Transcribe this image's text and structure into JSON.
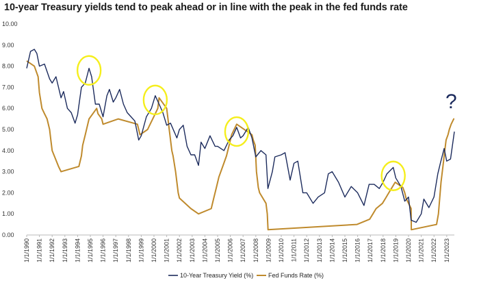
{
  "chart_data": {
    "type": "line",
    "title": "10-year Treasury yields tend to peak ahead or in line with the peak in the fed funds rate",
    "xlabel": "",
    "ylabel": "",
    "x_range": [
      1990.0,
      2023.6
    ],
    "ylim": [
      0,
      10
    ],
    "y_ticks": [
      "0.00",
      "1.00",
      "2.00",
      "3.00",
      "4.00",
      "5.00",
      "6.00",
      "7.00",
      "8.00",
      "9.00",
      "10.00"
    ],
    "x_ticks": [
      "1/1/1990",
      "1/1/1991",
      "1/1/1992",
      "1/1/1993",
      "1/1/1994",
      "1/1/1995",
      "1/1/1996",
      "1/1/1997",
      "1/1/1998",
      "1/1/1999",
      "1/1/2000",
      "1/1/2001",
      "1/1/2002",
      "1/1/2003",
      "1/1/2004",
      "1/1/2005",
      "1/1/2006",
      "1/1/2007",
      "1/1/2008",
      "1/1/2009",
      "1/1/2010",
      "1/1/2011",
      "1/1/2012",
      "1/1/2013",
      "1/1/2014",
      "1/1/2015",
      "1/1/2016",
      "1/1/2017",
      "1/1/2018",
      "1/1/2019",
      "1/1/2020",
      "1/1/2021",
      "1/1/2022",
      "1/1/2023"
    ],
    "grid": false,
    "legend_position": "bottom-center",
    "series": [
      {
        "name": "10-Year Treasury Yield (%)",
        "color": "#1b2a5c",
        "points": [
          [
            1990.0,
            7.9
          ],
          [
            1990.3,
            8.7
          ],
          [
            1990.6,
            8.8
          ],
          [
            1990.8,
            8.6
          ],
          [
            1991.0,
            8.0
          ],
          [
            1991.4,
            8.1
          ],
          [
            1991.8,
            7.4
          ],
          [
            1992.0,
            7.2
          ],
          [
            1992.3,
            7.5
          ],
          [
            1992.7,
            6.5
          ],
          [
            1992.9,
            6.8
          ],
          [
            1993.2,
            6.0
          ],
          [
            1993.5,
            5.8
          ],
          [
            1993.8,
            5.3
          ],
          [
            1994.0,
            5.7
          ],
          [
            1994.3,
            7.0
          ],
          [
            1994.6,
            7.2
          ],
          [
            1994.9,
            7.9
          ],
          [
            1995.1,
            7.5
          ],
          [
            1995.4,
            6.2
          ],
          [
            1995.7,
            6.2
          ],
          [
            1996.0,
            5.6
          ],
          [
            1996.3,
            6.6
          ],
          [
            1996.5,
            6.9
          ],
          [
            1996.8,
            6.3
          ],
          [
            1997.0,
            6.5
          ],
          [
            1997.3,
            6.9
          ],
          [
            1997.6,
            6.2
          ],
          [
            1997.9,
            5.8
          ],
          [
            1998.2,
            5.6
          ],
          [
            1998.5,
            5.4
          ],
          [
            1998.8,
            4.5
          ],
          [
            1999.0,
            4.7
          ],
          [
            1999.4,
            5.6
          ],
          [
            1999.8,
            6.0
          ],
          [
            2000.1,
            6.6
          ],
          [
            2000.4,
            6.2
          ],
          [
            2000.7,
            5.8
          ],
          [
            2001.0,
            5.2
          ],
          [
            2001.3,
            5.3
          ],
          [
            2001.8,
            4.6
          ],
          [
            2002.0,
            5.0
          ],
          [
            2002.3,
            5.2
          ],
          [
            2002.6,
            4.2
          ],
          [
            2002.9,
            3.8
          ],
          [
            2003.2,
            3.8
          ],
          [
            2003.5,
            3.3
          ],
          [
            2003.7,
            4.4
          ],
          [
            2004.0,
            4.1
          ],
          [
            2004.4,
            4.7
          ],
          [
            2004.8,
            4.2
          ],
          [
            2005.0,
            4.2
          ],
          [
            2005.5,
            4.0
          ],
          [
            2005.9,
            4.5
          ],
          [
            2006.2,
            4.7
          ],
          [
            2006.5,
            5.1
          ],
          [
            2006.8,
            4.6
          ],
          [
            2007.0,
            4.7
          ],
          [
            2007.4,
            5.1
          ],
          [
            2007.7,
            4.6
          ],
          [
            2008.0,
            3.7
          ],
          [
            2008.4,
            4.0
          ],
          [
            2008.8,
            3.8
          ],
          [
            2008.95,
            2.2
          ],
          [
            2009.3,
            3.0
          ],
          [
            2009.5,
            3.7
          ],
          [
            2010.0,
            3.8
          ],
          [
            2010.3,
            3.9
          ],
          [
            2010.7,
            2.6
          ],
          [
            2011.0,
            3.4
          ],
          [
            2011.3,
            3.5
          ],
          [
            2011.7,
            2.0
          ],
          [
            2012.0,
            2.0
          ],
          [
            2012.5,
            1.5
          ],
          [
            2012.9,
            1.8
          ],
          [
            2013.4,
            2.0
          ],
          [
            2013.7,
            2.9
          ],
          [
            2014.0,
            3.0
          ],
          [
            2014.5,
            2.5
          ],
          [
            2015.0,
            1.8
          ],
          [
            2015.5,
            2.3
          ],
          [
            2016.0,
            2.0
          ],
          [
            2016.5,
            1.4
          ],
          [
            2016.9,
            2.4
          ],
          [
            2017.3,
            2.4
          ],
          [
            2017.7,
            2.2
          ],
          [
            2018.0,
            2.5
          ],
          [
            2018.3,
            2.9
          ],
          [
            2018.8,
            3.2
          ],
          [
            2019.0,
            2.7
          ],
          [
            2019.4,
            2.3
          ],
          [
            2019.7,
            1.6
          ],
          [
            2020.0,
            1.8
          ],
          [
            2020.2,
            0.7
          ],
          [
            2020.6,
            0.6
          ],
          [
            2021.0,
            1.0
          ],
          [
            2021.2,
            1.7
          ],
          [
            2021.6,
            1.3
          ],
          [
            2022.0,
            1.8
          ],
          [
            2022.3,
            2.9
          ],
          [
            2022.5,
            3.4
          ],
          [
            2022.8,
            4.1
          ],
          [
            2023.0,
            3.5
          ],
          [
            2023.3,
            3.6
          ],
          [
            2023.6,
            4.9
          ]
        ]
      },
      {
        "name": "Fed Funds Rate (%)",
        "color": "#bf8a2c",
        "points": [
          [
            1990.0,
            8.25
          ],
          [
            1990.6,
            8.0
          ],
          [
            1990.9,
            7.5
          ],
          [
            1991.0,
            6.75
          ],
          [
            1991.2,
            6.0
          ],
          [
            1991.4,
            5.75
          ],
          [
            1991.6,
            5.5
          ],
          [
            1991.8,
            5.0
          ],
          [
            1991.9,
            4.5
          ],
          [
            1992.0,
            4.0
          ],
          [
            1992.5,
            3.25
          ],
          [
            1992.7,
            3.0
          ],
          [
            1994.1,
            3.25
          ],
          [
            1994.3,
            3.75
          ],
          [
            1994.4,
            4.25
          ],
          [
            1994.6,
            4.75
          ],
          [
            1994.9,
            5.5
          ],
          [
            1995.5,
            6.0
          ],
          [
            1995.6,
            5.75
          ],
          [
            1995.9,
            5.5
          ],
          [
            1996.0,
            5.25
          ],
          [
            1997.2,
            5.5
          ],
          [
            1998.7,
            5.25
          ],
          [
            1998.8,
            5.0
          ],
          [
            1998.9,
            4.75
          ],
          [
            1999.5,
            5.0
          ],
          [
            1999.7,
            5.25
          ],
          [
            1999.9,
            5.5
          ],
          [
            2000.1,
            5.75
          ],
          [
            2000.3,
            6.0
          ],
          [
            2000.4,
            6.5
          ],
          [
            2001.0,
            6.0
          ],
          [
            2001.1,
            5.5
          ],
          [
            2001.2,
            5.0
          ],
          [
            2001.3,
            4.5
          ],
          [
            2001.4,
            4.0
          ],
          [
            2001.5,
            3.75
          ],
          [
            2001.7,
            3.0
          ],
          [
            2001.8,
            2.5
          ],
          [
            2001.9,
            2.0
          ],
          [
            2002.0,
            1.75
          ],
          [
            2002.9,
            1.25
          ],
          [
            2003.5,
            1.0
          ],
          [
            2004.5,
            1.25
          ],
          [
            2004.7,
            1.75
          ],
          [
            2004.9,
            2.25
          ],
          [
            2005.1,
            2.75
          ],
          [
            2005.4,
            3.25
          ],
          [
            2005.7,
            3.75
          ],
          [
            2005.9,
            4.25
          ],
          [
            2006.1,
            4.75
          ],
          [
            2006.5,
            5.25
          ],
          [
            2007.7,
            4.75
          ],
          [
            2007.8,
            4.5
          ],
          [
            2007.95,
            4.25
          ],
          [
            2008.05,
            3.0
          ],
          [
            2008.2,
            2.25
          ],
          [
            2008.3,
            2.0
          ],
          [
            2008.8,
            1.5
          ],
          [
            2008.9,
            1.0
          ],
          [
            2008.96,
            0.25
          ],
          [
            2015.95,
            0.5
          ],
          [
            2016.95,
            0.75
          ],
          [
            2017.2,
            1.0
          ],
          [
            2017.45,
            1.25
          ],
          [
            2017.95,
            1.5
          ],
          [
            2018.2,
            1.75
          ],
          [
            2018.45,
            2.0
          ],
          [
            2018.7,
            2.25
          ],
          [
            2018.95,
            2.5
          ],
          [
            2019.55,
            2.25
          ],
          [
            2019.7,
            2.0
          ],
          [
            2019.8,
            1.75
          ],
          [
            2020.2,
            1.25
          ],
          [
            2020.22,
            0.25
          ],
          [
            2022.2,
            0.5
          ],
          [
            2022.35,
            1.0
          ],
          [
            2022.45,
            1.75
          ],
          [
            2022.55,
            2.5
          ],
          [
            2022.7,
            3.25
          ],
          [
            2022.85,
            4.0
          ],
          [
            2022.95,
            4.5
          ],
          [
            2023.1,
            4.75
          ],
          [
            2023.2,
            5.0
          ],
          [
            2023.35,
            5.25
          ],
          [
            2023.55,
            5.5
          ],
          [
            2023.6,
            5.5
          ]
        ]
      }
    ],
    "annotations": {
      "peak_circles": [
        {
          "x": 1994.9,
          "y": 7.8
        },
        {
          "x": 2000.1,
          "y": 6.4
        },
        {
          "x": 2006.5,
          "y": 4.9
        },
        {
          "x": 2018.8,
          "y": 2.8
        }
      ],
      "circle_color": "#f5ee1c",
      "question_mark": {
        "text": "?",
        "x": 2023.35,
        "y": 6.0
      }
    }
  }
}
